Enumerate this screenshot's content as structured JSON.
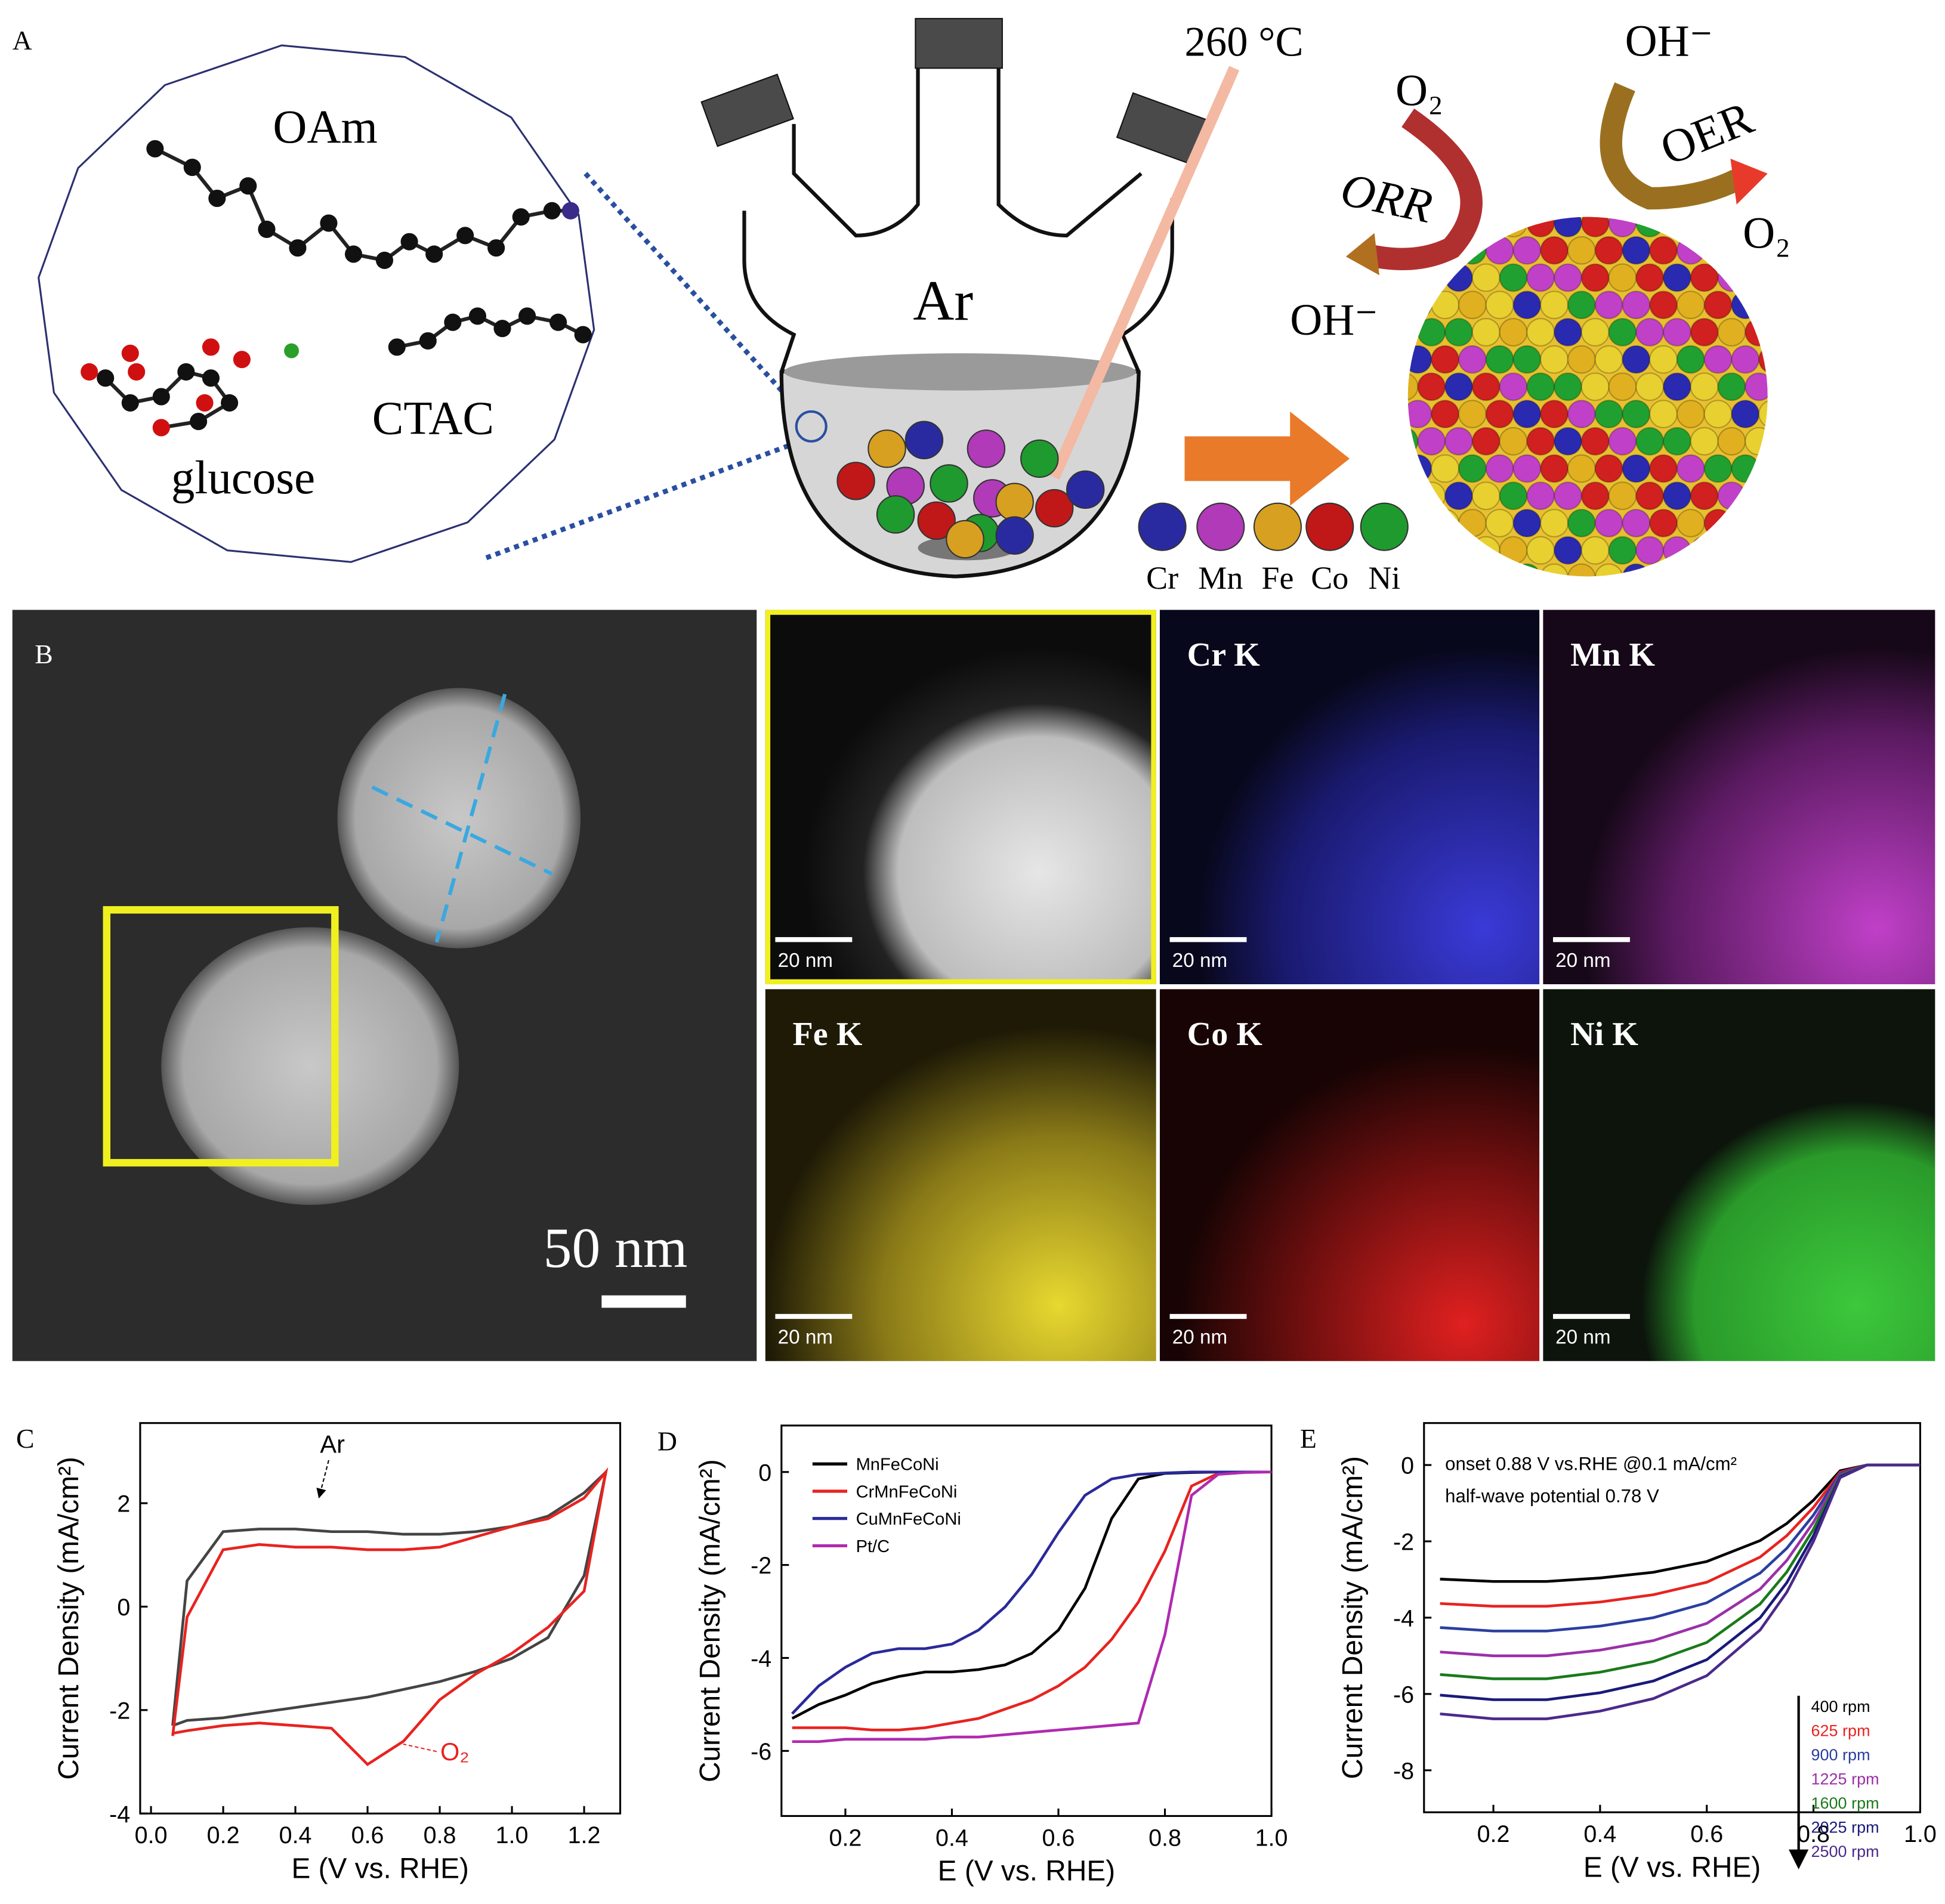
{
  "panel_a": {
    "label": "A",
    "molecules": [
      "OAm",
      "glucose",
      "CTAC"
    ],
    "temperature": "260 °C",
    "atmosphere": "Ar",
    "orr": {
      "reactant": "O₂",
      "name": "ORR",
      "product": "OH⁻"
    },
    "oer": {
      "reactant": "OH⁻",
      "name": "OER",
      "product": "O₂"
    },
    "elements": [
      "Cr",
      "Mn",
      "Fe",
      "Co",
      "Ni"
    ]
  },
  "panel_b": {
    "label": "B",
    "scale_bar": "50 nm",
    "maps": [
      "Cr K",
      "Mn K",
      "Fe K",
      "Co K",
      "Ni K"
    ],
    "map_scale_bars": [
      "20 nm",
      "20 nm",
      "20 nm",
      "20 nm",
      "20 nm",
      "20 nm"
    ]
  },
  "chart_data": [
    {
      "type": "line",
      "panel": "C",
      "x_label": "E (V vs. RHE)",
      "y_label": "Current Density (mA/cm²)",
      "annotations": [
        "Ar",
        "O₂"
      ],
      "x": [
        0.06,
        0.1,
        0.2,
        0.3,
        0.4,
        0.5,
        0.6,
        0.7,
        0.8,
        0.9,
        1.0,
        1.1,
        1.2,
        1.26,
        1.2,
        1.1,
        1.0,
        0.9,
        0.8,
        0.7,
        0.6,
        0.5,
        0.4,
        0.3,
        0.2,
        0.1,
        0.06
      ],
      "series": [
        {
          "color": "#444444",
          "values": [
            -2.3,
            0.5,
            1.45,
            1.5,
            1.5,
            1.45,
            1.45,
            1.4,
            1.4,
            1.45,
            1.55,
            1.75,
            2.2,
            2.6,
            0.6,
            -0.6,
            -1.0,
            -1.25,
            -1.45,
            -1.6,
            -1.75,
            -1.85,
            -1.95,
            -2.05,
            -2.15,
            -2.2,
            -2.3
          ]
        },
        {
          "color": "#e8231f",
          "values": [
            -2.5,
            -0.2,
            1.1,
            1.2,
            1.15,
            1.15,
            1.1,
            1.1,
            1.15,
            1.35,
            1.55,
            1.7,
            2.1,
            2.6,
            0.3,
            -0.4,
            -0.9,
            -1.3,
            -1.8,
            -2.6,
            -3.05,
            -2.35,
            -2.3,
            -2.25,
            -2.3,
            -2.4,
            -2.45
          ]
        }
      ],
      "xlim": [
        -0.03,
        1.3
      ],
      "ylim": [
        -4,
        3.55
      ],
      "xticks": [
        {
          "value": 0,
          "label": "0.0"
        },
        0.2,
        0.4,
        0.6,
        0.8,
        {
          "value": 1,
          "label": "1.0"
        },
        1.2
      ],
      "yticks": [
        -4,
        -2,
        0,
        2
      ]
    },
    {
      "type": "line",
      "panel": "D",
      "x_label": "E (V vs. RHE)",
      "y_label": "Current Density (mA/cm²)",
      "x": [
        0.1,
        0.15,
        0.2,
        0.25,
        0.3,
        0.35,
        0.4,
        0.45,
        0.5,
        0.55,
        0.6,
        0.65,
        0.7,
        0.75,
        0.8,
        0.85,
        0.9,
        0.95,
        1.0
      ],
      "series": [
        {
          "name": "MnFeCoNi",
          "color": "#000000",
          "values": [
            -5.3,
            -5.0,
            -4.8,
            -4.55,
            -4.4,
            -4.3,
            -4.3,
            -4.25,
            -4.15,
            -3.9,
            -3.4,
            -2.5,
            -1.0,
            -0.15,
            -0.03,
            -0.01,
            0,
            0,
            0
          ]
        },
        {
          "name": "CrMnFeCoNi",
          "color": "#e8231f",
          "values": [
            -5.5,
            -5.5,
            -5.5,
            -5.55,
            -5.55,
            -5.5,
            -5.4,
            -5.3,
            -5.1,
            -4.9,
            -4.6,
            -4.2,
            -3.6,
            -2.8,
            -1.7,
            -0.3,
            -0.03,
            0,
            0
          ]
        },
        {
          "name": "CuMnFeCoNi",
          "color": "#2a2a9a",
          "values": [
            -5.2,
            -4.6,
            -4.2,
            -3.9,
            -3.8,
            -3.8,
            -3.7,
            -3.4,
            -2.9,
            -2.2,
            -1.3,
            -0.5,
            -0.15,
            -0.05,
            -0.02,
            0,
            0,
            0,
            0
          ]
        },
        {
          "name": "Pt/C",
          "color": "#b02ab0",
          "values": [
            -5.8,
            -5.8,
            -5.75,
            -5.75,
            -5.75,
            -5.75,
            -5.7,
            -5.7,
            -5.65,
            -5.6,
            -5.55,
            -5.5,
            -5.45,
            -5.4,
            -3.5,
            -0.5,
            -0.05,
            -0.01,
            0
          ]
        }
      ],
      "xlim": [
        0.08,
        1.0
      ],
      "ylim": [
        -7.4,
        1
      ],
      "xticks": [
        0.2,
        0.4,
        0.6,
        0.8,
        {
          "value": 1,
          "label": "1.0"
        }
      ],
      "yticks": [
        -6,
        -4,
        -2,
        0
      ]
    },
    {
      "type": "line",
      "panel": "E",
      "x_label": "E (V vs. RHE)",
      "y_label": "Current Density (mA/cm²)",
      "annotations": [
        "onset 0.88 V vs.RHE @0.1 mA/cm²",
        "half-wave potential 0.78 V"
      ],
      "x": [
        0.1,
        0.2,
        0.3,
        0.4,
        0.5,
        0.6,
        0.7,
        0.75,
        0.8,
        0.85,
        0.9,
        1.0
      ],
      "series": [
        {
          "name": "400 rpm",
          "color": "#000000",
          "values": [
            -2.99,
            -3.05,
            -3.05,
            -2.96,
            -2.81,
            -2.53,
            -1.98,
            -1.53,
            -0.92,
            -0.15,
            0,
            0
          ]
        },
        {
          "name": "625 rpm",
          "color": "#e8231f",
          "values": [
            -3.63,
            -3.7,
            -3.7,
            -3.59,
            -3.4,
            -3.07,
            -2.41,
            -1.85,
            -1.11,
            -0.19,
            0,
            0
          ]
        },
        {
          "name": "900 rpm",
          "color": "#2b3fa0",
          "values": [
            -4.26,
            -4.35,
            -4.35,
            -4.22,
            -4.0,
            -3.61,
            -2.83,
            -2.18,
            -1.31,
            -0.22,
            0,
            0
          ]
        },
        {
          "name": "1225 rpm",
          "color": "#9b30a8",
          "values": [
            -4.9,
            -5.0,
            -5.0,
            -4.85,
            -4.6,
            -4.15,
            -3.25,
            -2.5,
            -1.5,
            -0.25,
            0,
            0
          ]
        },
        {
          "name": "1600 rpm",
          "color": "#1a7a1a",
          "values": [
            -5.49,
            -5.6,
            -5.6,
            -5.43,
            -5.15,
            -4.65,
            -3.64,
            -2.8,
            -1.68,
            -0.28,
            0,
            0
          ]
        },
        {
          "name": "2025 rpm",
          "color": "#1a1a7a",
          "values": [
            -6.03,
            -6.15,
            -6.15,
            -5.97,
            -5.66,
            -5.1,
            -4.0,
            -3.08,
            -1.85,
            -0.31,
            0,
            0
          ]
        },
        {
          "name": "2500 rpm",
          "color": "#4b2a8a",
          "values": [
            -6.52,
            -6.65,
            -6.65,
            -6.45,
            -6.12,
            -5.52,
            -4.32,
            -3.33,
            -2.0,
            -0.33,
            0,
            0
          ]
        }
      ],
      "xlim": [
        0.07,
        1.0
      ],
      "ylim": [
        -9.1,
        1.1
      ],
      "xticks": [
        0.2,
        0.4,
        0.6,
        0.8,
        {
          "value": 1,
          "label": "1.0"
        }
      ],
      "yticks": [
        -8,
        -6,
        -4,
        -2,
        0
      ]
    }
  ]
}
